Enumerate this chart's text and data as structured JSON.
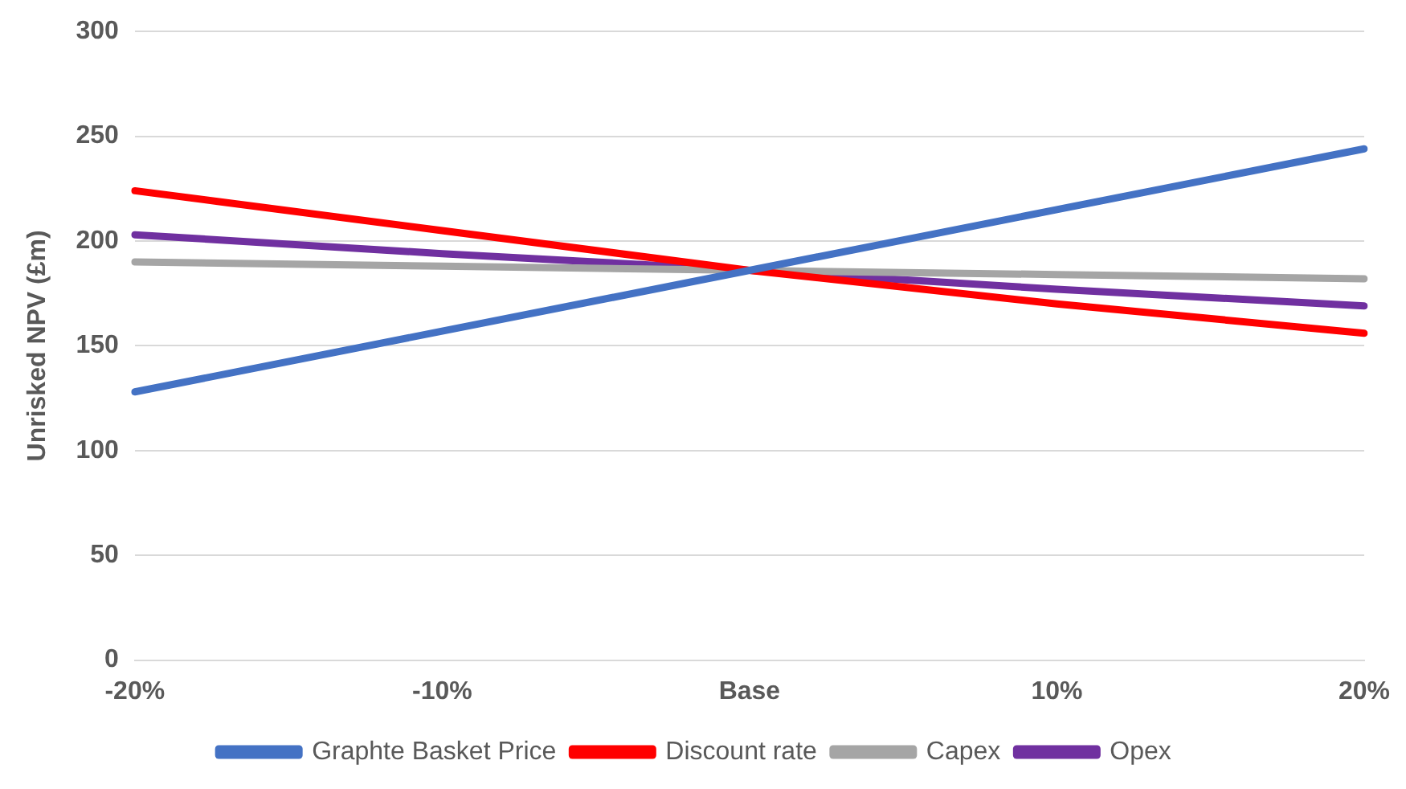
{
  "chart_data": {
    "type": "line",
    "ylabel": "Unrisked NPV (£m)",
    "categories": [
      "-20%",
      "-10%",
      "Base",
      "10%",
      "20%"
    ],
    "series": [
      {
        "name": "Graphte Basket Price",
        "color": "#4472c4",
        "values": [
          128,
          157,
          186,
          215,
          244
        ]
      },
      {
        "name": "Discount rate",
        "color": "#ff0000",
        "values": [
          224,
          205,
          186,
          170,
          156
        ]
      },
      {
        "name": "Capex",
        "color": "#a5a5a5",
        "values": [
          190,
          188,
          186,
          184,
          182
        ]
      },
      {
        "name": "Opex",
        "color": "#7030a0",
        "values": [
          203,
          194,
          186,
          177,
          169
        ]
      }
    ],
    "ylim": [
      0,
      300
    ],
    "yticks": [
      0,
      50,
      100,
      150,
      200,
      250,
      300
    ],
    "grid": "y",
    "legend": "bottom",
    "marker": "none",
    "line_style": "solid"
  }
}
